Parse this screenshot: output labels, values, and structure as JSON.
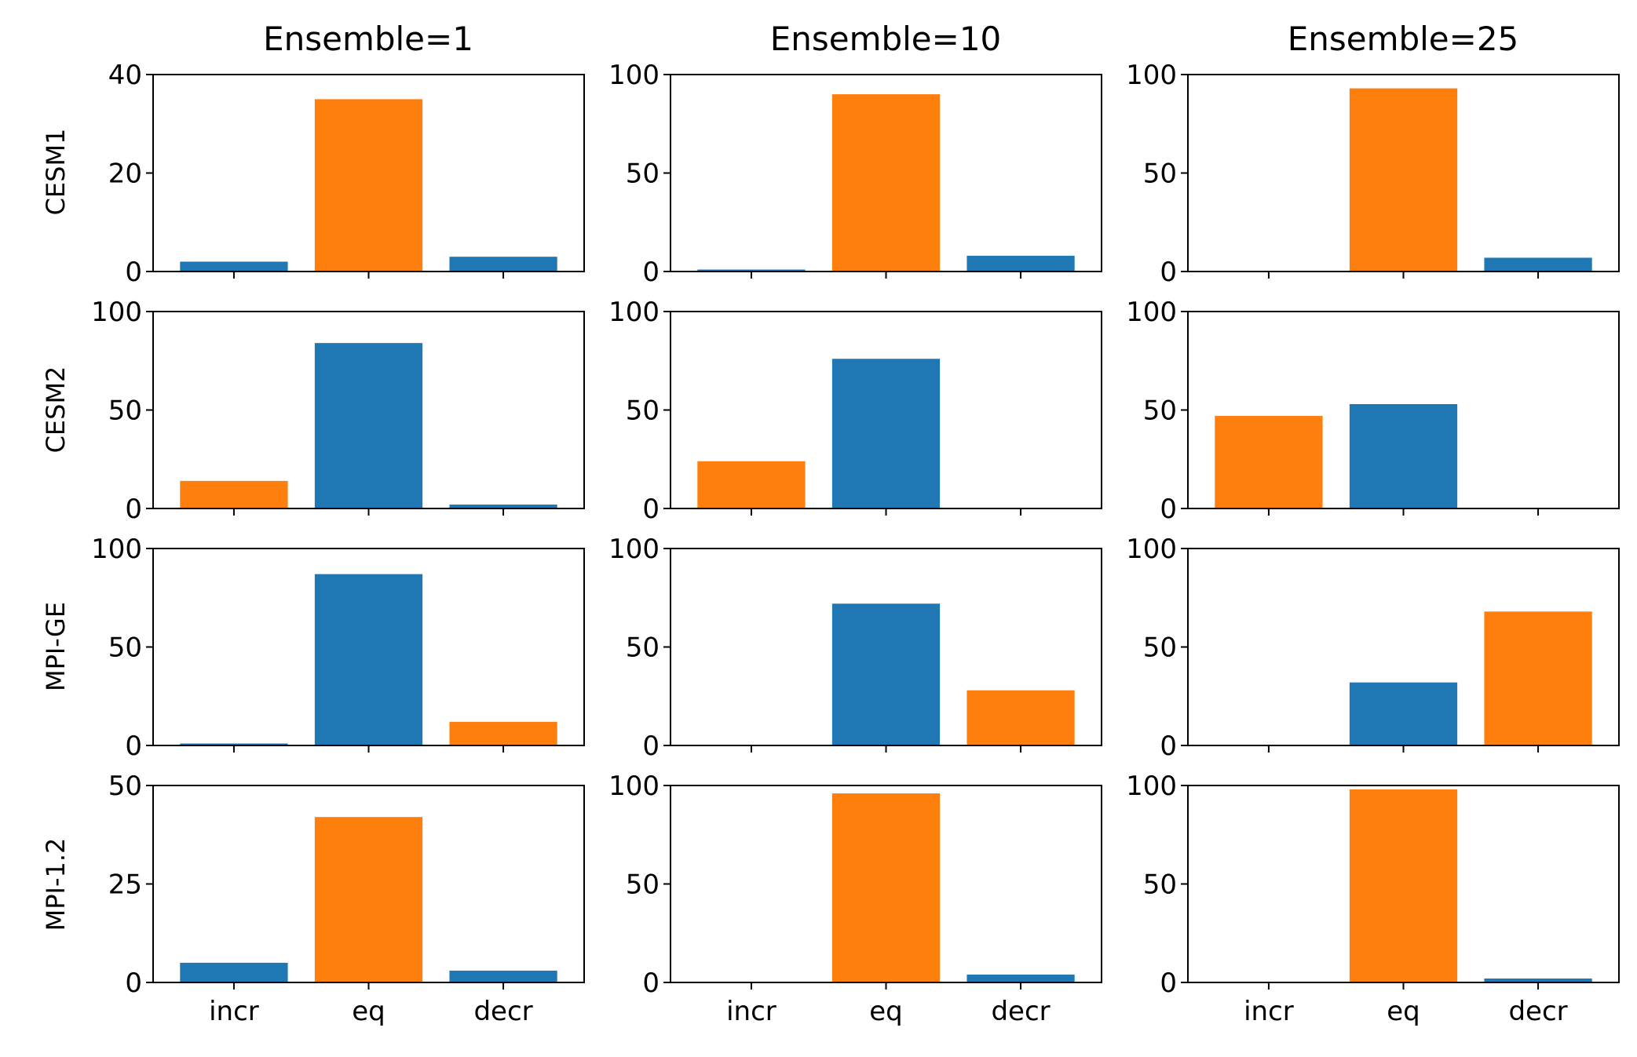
{
  "chart_data": {
    "type": "bar",
    "layout": "grid",
    "grid": {
      "rows": 4,
      "cols": 3
    },
    "column_titles": [
      "Ensemble=1",
      "Ensemble=10",
      "Ensemble=25"
    ],
    "row_labels": [
      "CESM1",
      "CESM2",
      "MPI-GE",
      "MPI-1.2"
    ],
    "categories": [
      "incr",
      "eq",
      "decr"
    ],
    "colors": {
      "blue": "#1f77b4",
      "orange": "#ff7f0e"
    },
    "grid_lines": false,
    "legend": "none",
    "panels": [
      {
        "row": 0,
        "col": 0,
        "values": [
          2,
          35,
          3
        ],
        "colors": [
          "blue",
          "orange",
          "blue"
        ],
        "ylim": [
          0,
          40
        ],
        "yticks": [
          0,
          20,
          40
        ]
      },
      {
        "row": 0,
        "col": 1,
        "values": [
          1,
          90,
          8
        ],
        "colors": [
          "blue",
          "orange",
          "blue"
        ],
        "ylim": [
          0,
          100
        ],
        "yticks": [
          0,
          50,
          100
        ]
      },
      {
        "row": 0,
        "col": 2,
        "values": [
          0,
          93,
          7
        ],
        "colors": [
          "blue",
          "orange",
          "blue"
        ],
        "ylim": [
          0,
          100
        ],
        "yticks": [
          0,
          50,
          100
        ]
      },
      {
        "row": 1,
        "col": 0,
        "values": [
          14,
          84,
          2
        ],
        "colors": [
          "orange",
          "blue",
          "blue"
        ],
        "ylim": [
          0,
          100
        ],
        "yticks": [
          0,
          50,
          100
        ]
      },
      {
        "row": 1,
        "col": 1,
        "values": [
          24,
          76,
          0
        ],
        "colors": [
          "orange",
          "blue",
          "blue"
        ],
        "ylim": [
          0,
          100
        ],
        "yticks": [
          0,
          50,
          100
        ]
      },
      {
        "row": 1,
        "col": 2,
        "values": [
          47,
          53,
          0
        ],
        "colors": [
          "orange",
          "blue",
          "blue"
        ],
        "ylim": [
          0,
          100
        ],
        "yticks": [
          0,
          50,
          100
        ]
      },
      {
        "row": 2,
        "col": 0,
        "values": [
          1,
          87,
          12
        ],
        "colors": [
          "blue",
          "blue",
          "orange"
        ],
        "ylim": [
          0,
          100
        ],
        "yticks": [
          0,
          50,
          100
        ]
      },
      {
        "row": 2,
        "col": 1,
        "values": [
          0,
          72,
          28
        ],
        "colors": [
          "blue",
          "blue",
          "orange"
        ],
        "ylim": [
          0,
          100
        ],
        "yticks": [
          0,
          50,
          100
        ]
      },
      {
        "row": 2,
        "col": 2,
        "values": [
          0,
          32,
          68
        ],
        "colors": [
          "blue",
          "blue",
          "orange"
        ],
        "ylim": [
          0,
          100
        ],
        "yticks": [
          0,
          50,
          100
        ]
      },
      {
        "row": 3,
        "col": 0,
        "values": [
          5,
          42,
          3
        ],
        "colors": [
          "blue",
          "orange",
          "blue"
        ],
        "ylim": [
          0,
          50
        ],
        "yticks": [
          0,
          25,
          50
        ]
      },
      {
        "row": 3,
        "col": 1,
        "values": [
          0,
          96,
          4
        ],
        "colors": [
          "blue",
          "orange",
          "blue"
        ],
        "ylim": [
          0,
          100
        ],
        "yticks": [
          0,
          50,
          100
        ]
      },
      {
        "row": 3,
        "col": 2,
        "values": [
          0,
          98,
          2
        ],
        "colors": [
          "blue",
          "orange",
          "blue"
        ],
        "ylim": [
          0,
          100
        ],
        "yticks": [
          0,
          50,
          100
        ]
      }
    ]
  }
}
